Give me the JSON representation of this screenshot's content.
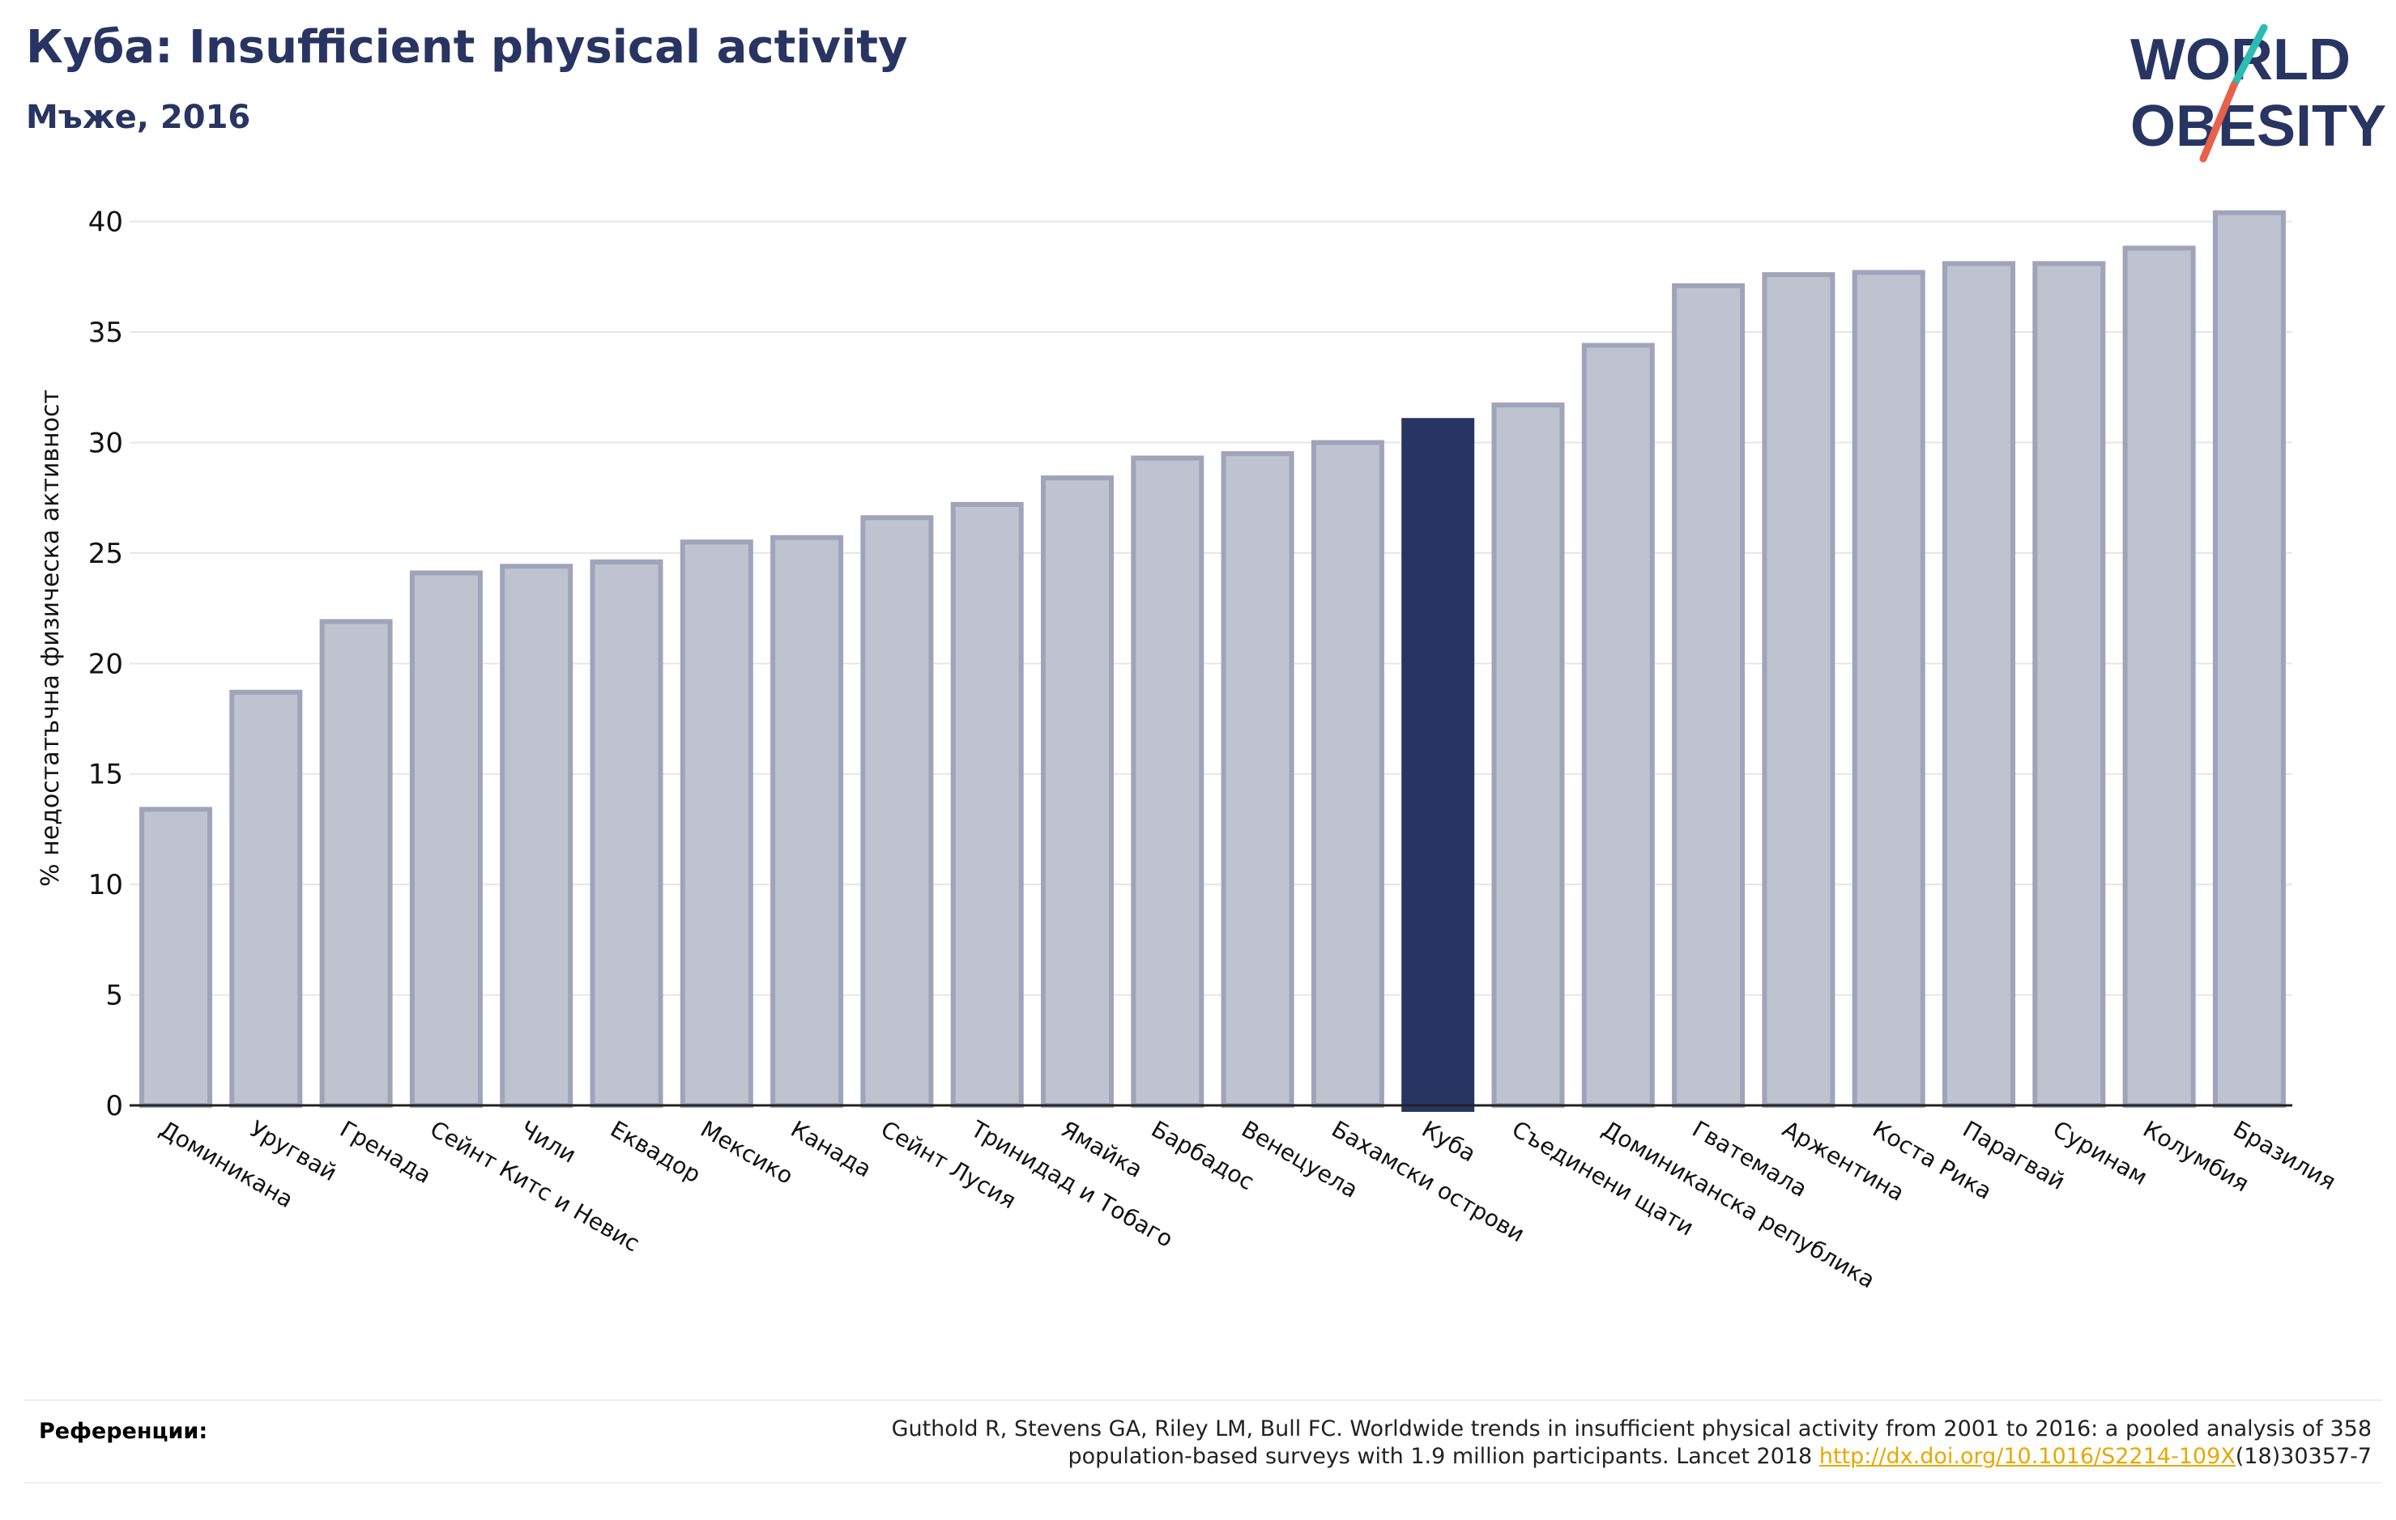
{
  "header": {
    "title": "Куба: Insufficient physical activity",
    "subtitle": "Мъже, 2016"
  },
  "logo": {
    "line1": "WORLD",
    "line2": "OBESITY",
    "text_color": "#283562",
    "slash_colors": [
      "#2bbcb4",
      "#e8604c"
    ]
  },
  "chart_data": {
    "type": "bar",
    "ylabel": "% недостатъчна физическа активност",
    "ylim": [
      0,
      40.5
    ],
    "yticks": [
      0,
      5,
      10,
      15,
      20,
      25,
      30,
      35,
      40
    ],
    "grid": true,
    "categories": [
      "Доминикана",
      "Уругвай",
      "Гренада",
      "Сейнт Китс и Невис",
      "Чили",
      "Еквадор",
      "Мексико",
      "Канада",
      "Сейнт Лусия",
      "Тринидад и Тобаго",
      "Ямайка",
      "Барбадос",
      "Венецуела",
      "Бахамски острови",
      "Куба",
      "Съединени щати",
      "Доминиканска република",
      "Гватемала",
      "Аржентина",
      "Коста Рика",
      "Парагвай",
      "Суринам",
      "Колумбия",
      "Бразилия"
    ],
    "values": [
      13.4,
      18.7,
      21.9,
      24.1,
      24.4,
      24.6,
      25.5,
      25.7,
      26.6,
      27.2,
      28.4,
      29.3,
      29.5,
      30.0,
      31.0,
      31.7,
      34.4,
      37.1,
      37.6,
      37.7,
      38.1,
      38.1,
      38.8,
      40.4
    ],
    "highlight": "Куба",
    "colors": {
      "bar": "#bfc2cf",
      "bar_edge": "#9fa4ba",
      "highlight": "#283562"
    }
  },
  "references": {
    "label": "Референции:",
    "text_line1": "Guthold R, Stevens GA, Riley LM, Bull FC. Worldwide trends in insufficient physical activity from 2001 to 2016: a pooled analysis of 358",
    "text_line2_pre": "population-based surveys with 1.9 million participants. Lancet 2018 ",
    "link": "http://dx.doi.org/10.1016/S2214-109X",
    "text_line2_post": "(18)30357-7"
  }
}
